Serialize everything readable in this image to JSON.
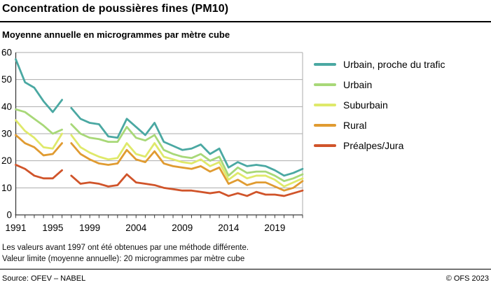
{
  "header": {
    "title": "Concentration de poussières fines (PM10)",
    "subtitle": "Moyenne annuelle en microgrammes par mètre cube"
  },
  "chart_data": {
    "type": "line",
    "title": "Concentration de poussières fines (PM10)",
    "ylabel": "Moyenne annuelle en microgrammes par mètre cube",
    "ylim": [
      0,
      60
    ],
    "y_ticks": [
      0,
      10,
      20,
      30,
      40,
      50,
      60
    ],
    "x_range_years": [
      1991,
      2022
    ],
    "x_tick_labels": [
      "1991",
      "1995",
      "1999",
      "2004",
      "2009",
      "2014",
      "2019"
    ],
    "grid": "horizontal",
    "legend_position": "right",
    "gap_note": "no data plotted between 1996 and 1997 (method change)",
    "colors": {
      "grid": "#ababab",
      "axis": "#3c3c3c",
      "frame_right": "#ababab"
    },
    "series": [
      {
        "name": "Urbain, proche du trafic",
        "color": "#4AA8A2",
        "segments": [
          {
            "start_year": 1991,
            "values": [
              57.5,
              49,
              47,
              42,
              38,
              42.5
            ]
          },
          {
            "start_year": 1997,
            "values": [
              39.5,
              35.5,
              34,
              33.5,
              29,
              28.5,
              35.5,
              32.5,
              29.5,
              34,
              27,
              25.5,
              24,
              24.5,
              26,
              22.5,
              24.5,
              17.5,
              19.5,
              18,
              18.5,
              18,
              16.5,
              14.5,
              15.5,
              17
            ]
          }
        ]
      },
      {
        "name": "Urbain",
        "color": "#A8D878",
        "segments": [
          {
            "start_year": 1991,
            "values": [
              39,
              38,
              35.5,
              33,
              30,
              31.5
            ]
          },
          {
            "start_year": 1997,
            "values": [
              33.5,
              30,
              28.5,
              28,
              27,
              27,
              32.5,
              28.5,
              27.5,
              29.5,
              24,
              22.5,
              21.5,
              21,
              22.5,
              20,
              21.5,
              14.5,
              17.5,
              15.5,
              16,
              16,
              14.5,
              12.5,
              13.5,
              15
            ]
          }
        ]
      },
      {
        "name": "Suburbain",
        "color": "#DFE96A",
        "segments": [
          {
            "start_year": 1991,
            "values": [
              35,
              31,
              28.5,
              25,
              24.5,
              30
            ]
          },
          {
            "start_year": 1997,
            "values": [
              29.5,
              25,
              23,
              21.5,
              20.5,
              21,
              26.5,
              22.5,
              21.5,
              26.5,
              21.5,
              20.5,
              19.5,
              19,
              20.5,
              18,
              19.5,
              13,
              15.5,
              13.5,
              14.5,
              14.5,
              13,
              10.5,
              12,
              13.5
            ]
          }
        ]
      },
      {
        "name": "Rural",
        "color": "#E09B31",
        "segments": [
          {
            "start_year": 1991,
            "values": [
              29.5,
              26.5,
              25,
              22,
              22.5,
              26.5
            ]
          },
          {
            "start_year": 1997,
            "values": [
              26.5,
              22.5,
              20.5,
              19,
              18.5,
              19,
              24,
              20.5,
              19.5,
              23.5,
              19,
              18,
              17.5,
              17,
              18,
              16,
              17.5,
              11.5,
              13,
              11,
              12,
              12,
              10.5,
              9,
              10,
              12.5
            ]
          }
        ]
      },
      {
        "name": "Préalpes/Jura",
        "color": "#D0542A",
        "segments": [
          {
            "start_year": 1991,
            "values": [
              18.5,
              17,
              14.5,
              13.5,
              13.5,
              16.5
            ]
          },
          {
            "start_year": 1997,
            "values": [
              14.5,
              11.5,
              12,
              11.5,
              10.5,
              11,
              15,
              12,
              11.5,
              11,
              10,
              9.5,
              9,
              9,
              8.5,
              8,
              8.5,
              7,
              8,
              7,
              8.5,
              7.5,
              7.5,
              7,
              8,
              9
            ]
          }
        ]
      }
    ]
  },
  "notes": {
    "line1": "Les valeurs avant 1997 ont été obtenues par une méthode différente.",
    "line2": "Valeur limite (moyenne annuelle): 20 microgrammes par mètre cube"
  },
  "footer": {
    "source": "Source: OFEV – NABEL",
    "copyright": "© OFS 2023"
  }
}
